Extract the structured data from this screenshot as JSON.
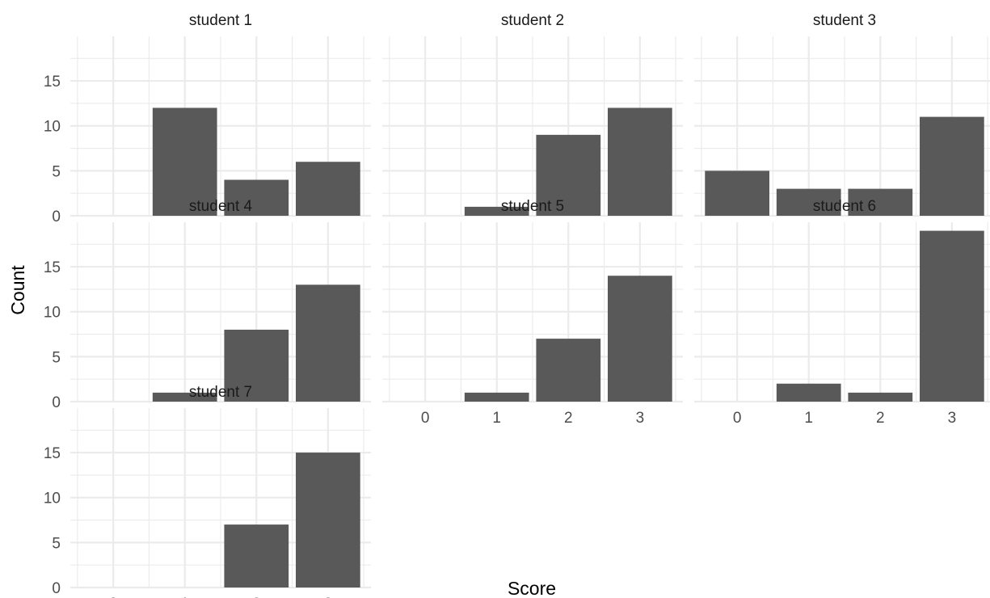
{
  "chart_data": {
    "type": "bar",
    "facet_by": "student",
    "xlabel": "Score",
    "ylabel": "Count",
    "categories": [
      "0",
      "1",
      "2",
      "3"
    ],
    "ylim": [
      0,
      19.95
    ],
    "yticks": [
      0,
      5,
      10,
      15
    ],
    "grid": true,
    "bar_color": "#595959",
    "grid_color": "#ebebeb",
    "panels": [
      {
        "title": "student 1",
        "values": [
          0,
          12,
          4,
          6
        ]
      },
      {
        "title": "student 2",
        "values": [
          0,
          1,
          9,
          12
        ]
      },
      {
        "title": "student 3",
        "values": [
          5,
          3,
          3,
          11
        ]
      },
      {
        "title": "student 4",
        "values": [
          0,
          1,
          8,
          13
        ]
      },
      {
        "title": "student 5",
        "values": [
          0,
          1,
          7,
          14
        ]
      },
      {
        "title": "student 6",
        "values": [
          0,
          2,
          1,
          19
        ]
      },
      {
        "title": "student 7",
        "values": [
          0,
          0,
          7,
          15
        ]
      }
    ]
  }
}
